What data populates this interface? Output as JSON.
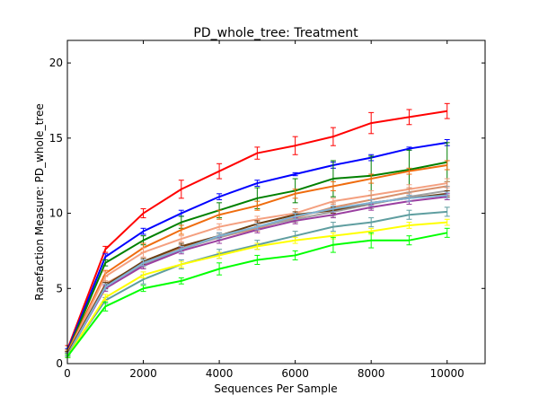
{
  "chart_data": {
    "type": "line",
    "title": "PD_whole_tree: Treatment",
    "xlabel": "Sequences Per Sample",
    "ylabel": "Rarefaction Measure: PD_whole_tree",
    "xlim": [
      0,
      11000
    ],
    "ylim": [
      0,
      21.5
    ],
    "xticks": [
      0,
      2000,
      4000,
      6000,
      8000,
      10000
    ],
    "yticks": [
      0,
      5,
      10,
      15,
      20
    ],
    "grid": false,
    "x": [
      10,
      1000,
      2000,
      3000,
      4000,
      5000,
      6000,
      7000,
      8000,
      9000,
      10000
    ],
    "series": [
      {
        "color": "#ff0000",
        "values": [
          1.0,
          7.6,
          10.0,
          11.6,
          12.8,
          14.0,
          14.5,
          15.1,
          16.0,
          16.4,
          16.8
        ],
        "err": [
          0.2,
          0.2,
          0.3,
          0.6,
          0.5,
          0.4,
          0.6,
          0.6,
          0.7,
          0.5,
          0.5
        ]
      },
      {
        "color": "#0000ff",
        "values": [
          0.9,
          7.1,
          8.8,
          10.0,
          11.1,
          12.0,
          12.6,
          13.2,
          13.7,
          14.3,
          14.7
        ],
        "err": [
          0.1,
          0.2,
          0.2,
          0.2,
          0.2,
          0.2,
          0.1,
          0.2,
          0.2,
          0.1,
          0.2
        ]
      },
      {
        "color": "#008000",
        "values": [
          0.8,
          6.7,
          8.2,
          9.4,
          10.2,
          11.0,
          11.5,
          12.3,
          12.5,
          12.9,
          13.4
        ],
        "err": [
          0.1,
          0.2,
          0.3,
          0.4,
          0.5,
          0.7,
          0.8,
          1.2,
          1.3,
          1.3,
          1.3
        ]
      },
      {
        "color": "#ef6c0e",
        "values": [
          0.8,
          6.0,
          7.7,
          8.9,
          9.9,
          10.5,
          11.3,
          11.8,
          12.3,
          12.8,
          13.2
        ],
        "err": [
          0.1,
          0.2,
          0.3,
          0.3,
          0.3,
          0.3,
          0.3,
          0.3,
          0.3,
          0.2,
          0.3
        ]
      },
      {
        "color": "#f4a080",
        "values": [
          0.7,
          5.8,
          7.4,
          8.3,
          9.1,
          9.6,
          10.0,
          10.8,
          11.2,
          11.6,
          12.0
        ],
        "err": [
          0.1,
          0.3,
          0.3,
          0.2,
          0.2,
          0.2,
          0.3,
          0.2,
          0.3,
          0.3,
          0.3
        ]
      },
      {
        "color": "#d8906c",
        "values": [
          0.7,
          5.3,
          6.7,
          7.7,
          8.4,
          9.0,
          9.7,
          10.4,
          10.9,
          11.4,
          11.8
        ],
        "err": [
          0.1,
          0.2,
          0.2,
          0.2,
          0.2,
          0.2,
          0.3,
          0.3,
          0.3,
          0.3,
          0.3
        ]
      },
      {
        "color": "#a0a0a0",
        "values": [
          0.7,
          5.2,
          6.6,
          7.6,
          8.4,
          9.1,
          9.6,
          10.1,
          10.6,
          11.1,
          11.5
        ],
        "err": [
          0.1,
          0.2,
          0.2,
          0.2,
          0.2,
          0.2,
          0.2,
          0.3,
          0.3,
          0.3,
          0.3
        ]
      },
      {
        "color": "#6b3d10",
        "values": [
          0.7,
          5.2,
          6.8,
          7.8,
          8.5,
          9.3,
          9.9,
          10.2,
          10.7,
          11.0,
          11.3
        ],
        "err": [
          0.1,
          0.2,
          0.2,
          0.2,
          0.2,
          0.2,
          0.2,
          0.2,
          0.2,
          0.2,
          0.2
        ]
      },
      {
        "color": "#9a3fa0",
        "values": [
          0.6,
          5.0,
          6.5,
          7.5,
          8.2,
          8.9,
          9.5,
          9.9,
          10.4,
          10.8,
          11.1
        ],
        "err": [
          0.1,
          0.2,
          0.2,
          0.2,
          0.2,
          0.2,
          0.2,
          0.2,
          0.2,
          0.2,
          0.2
        ]
      },
      {
        "color": "#7fb3d5",
        "values": [
          0.6,
          5.1,
          6.7,
          7.6,
          8.5,
          9.1,
          9.8,
          10.3,
          10.7,
          11.0,
          11.2
        ],
        "err": [
          0.1,
          0.2,
          0.2,
          0.2,
          0.2,
          0.2,
          0.2,
          0.2,
          0.2,
          0.2,
          0.2
        ]
      },
      {
        "color": "#5f9ea0",
        "values": [
          0.6,
          4.2,
          5.6,
          6.6,
          7.3,
          7.9,
          8.5,
          9.1,
          9.4,
          9.9,
          10.1
        ],
        "err": [
          0.1,
          0.2,
          0.3,
          0.3,
          0.3,
          0.3,
          0.3,
          0.3,
          0.3,
          0.3,
          0.3
        ]
      },
      {
        "color": "#ffff00",
        "values": [
          0.5,
          4.4,
          5.9,
          6.6,
          7.2,
          7.8,
          8.2,
          8.5,
          8.8,
          9.2,
          9.4
        ],
        "err": [
          0.1,
          0.2,
          0.2,
          0.2,
          0.2,
          0.2,
          0.2,
          0.2,
          0.2,
          0.2,
          0.2
        ]
      },
      {
        "color": "#00ff00",
        "values": [
          0.5,
          3.8,
          5.0,
          5.5,
          6.3,
          6.9,
          7.2,
          7.9,
          8.2,
          8.2,
          8.7
        ],
        "err": [
          0.1,
          0.3,
          0.2,
          0.2,
          0.4,
          0.3,
          0.3,
          0.5,
          0.5,
          0.3,
          0.3
        ]
      }
    ]
  }
}
